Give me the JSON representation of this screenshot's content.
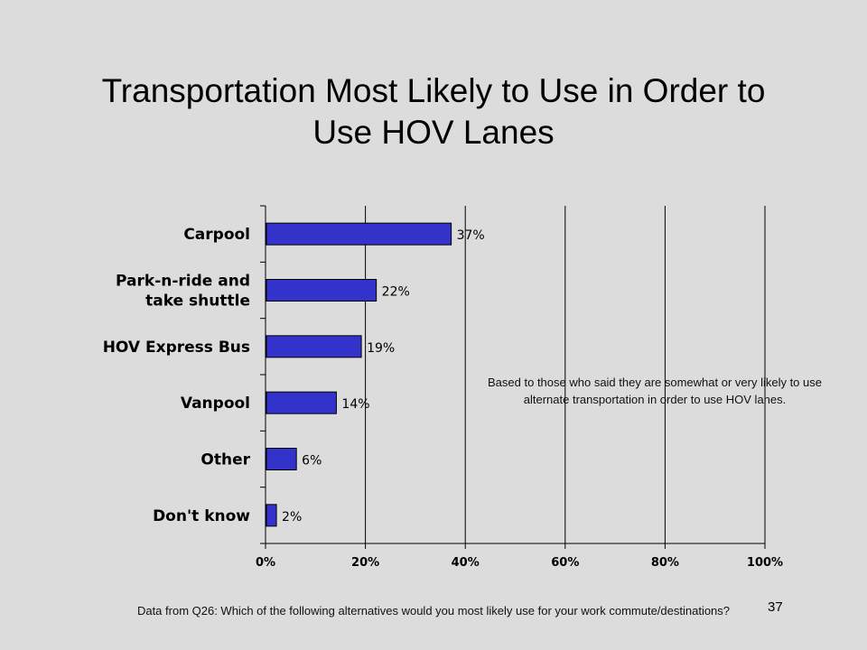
{
  "slide": {
    "title_line1": "Transportation Most Likely to Use in Order to",
    "title_line2": "Use HOV Lanes",
    "note": "Based to those who said they are somewhat or very likely to use alternate transportation in order to use HOV lanes.",
    "footnote": "Data from Q26:  Which of the following alternatives would you most likely use for your work commute/destinations?",
    "page_number": "37"
  },
  "chart_data": {
    "type": "bar",
    "orientation": "horizontal",
    "categories": [
      "Carpool",
      "Park-n-ride and take shuttle",
      "HOV Express Bus",
      "Vanpool",
      "Other",
      "Don't know"
    ],
    "category_lines": [
      [
        "Carpool"
      ],
      [
        "Park-n-ride and",
        "take shuttle"
      ],
      [
        "HOV Express Bus"
      ],
      [
        "Vanpool"
      ],
      [
        "Other"
      ],
      [
        "Don't know"
      ]
    ],
    "values": [
      37,
      22,
      19,
      14,
      6,
      2
    ],
    "data_labels": [
      "37%",
      "22%",
      "19%",
      "14%",
      "6%",
      "2%"
    ],
    "xlim": [
      0,
      100
    ],
    "xticks": [
      0,
      20,
      40,
      60,
      80,
      100
    ],
    "xtick_labels": [
      "0%",
      "20%",
      "40%",
      "60%",
      "80%",
      "100%"
    ],
    "grid": "vertical",
    "bar_color": "#3333cc"
  }
}
